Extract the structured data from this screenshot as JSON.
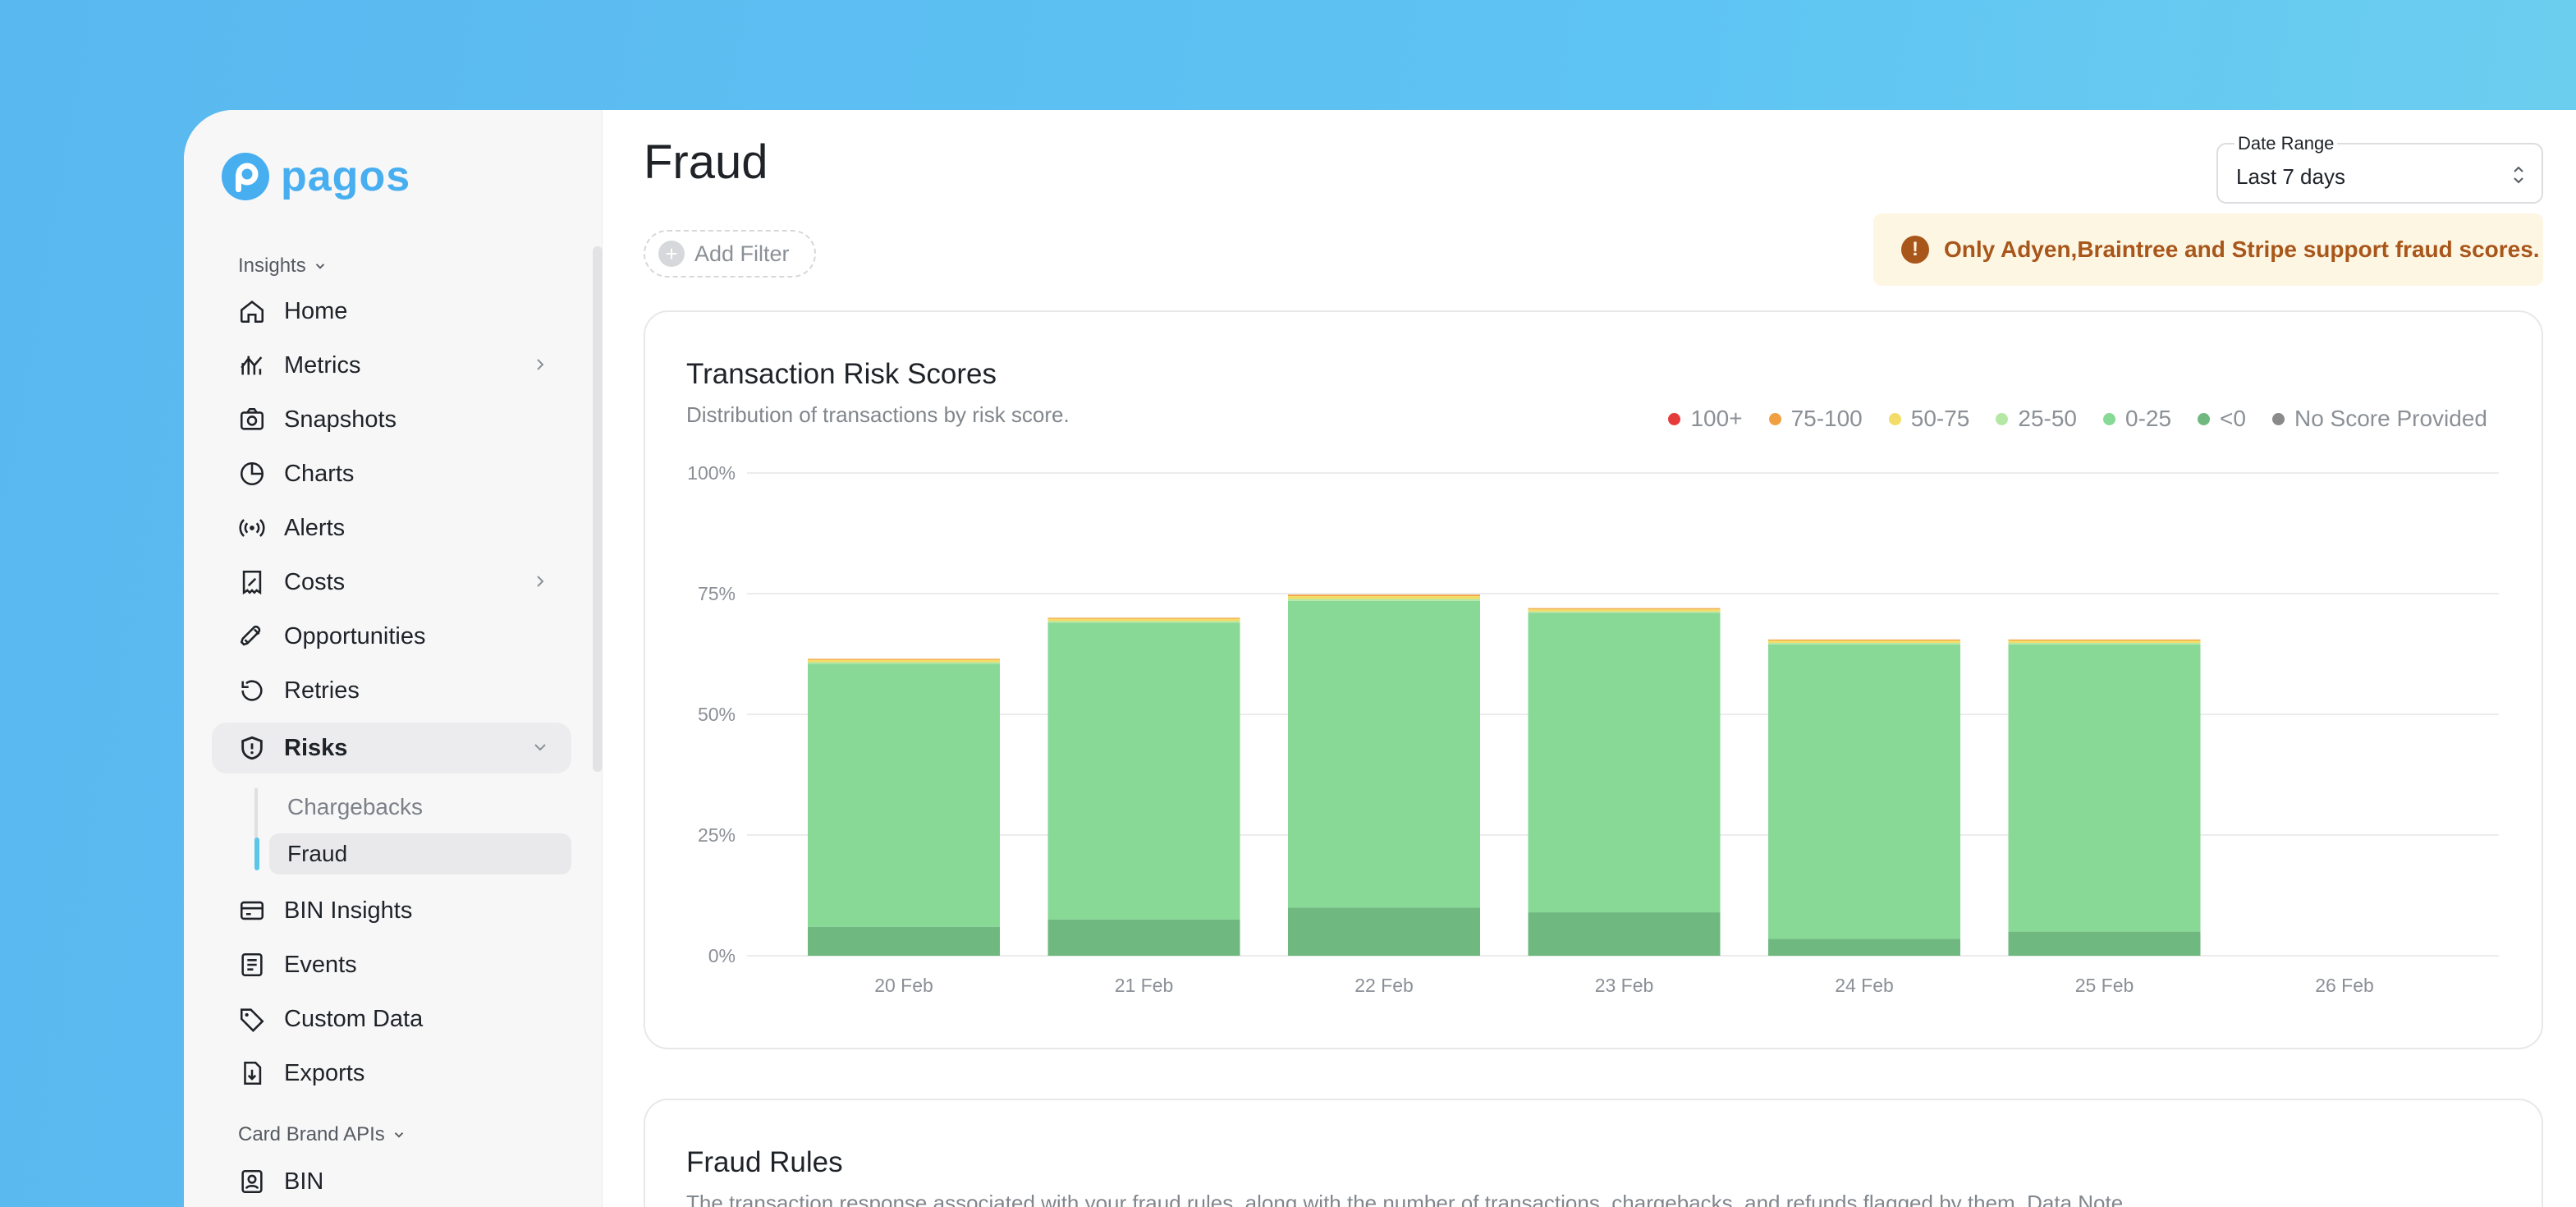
{
  "app": {
    "logo_text": "pagos",
    "brand_color": "#47aef0"
  },
  "sidebar": {
    "section1_label": "Insights",
    "items": [
      {
        "label": "Home",
        "icon": "home-icon"
      },
      {
        "label": "Metrics",
        "icon": "metrics-icon",
        "has_submenu": true
      },
      {
        "label": "Snapshots",
        "icon": "camera-icon"
      },
      {
        "label": "Charts",
        "icon": "pie-chart-icon"
      },
      {
        "label": "Alerts",
        "icon": "broadcast-icon"
      },
      {
        "label": "Costs",
        "icon": "receipt-icon",
        "has_submenu": true
      },
      {
        "label": "Opportunities",
        "icon": "rocket-icon"
      },
      {
        "label": "Retries",
        "icon": "refresh-icon"
      },
      {
        "label": "Risks",
        "icon": "shield-icon",
        "active": true,
        "expanded": true
      },
      {
        "label": "BIN Insights",
        "icon": "card-icon"
      },
      {
        "label": "Events",
        "icon": "list-icon"
      },
      {
        "label": "Custom Data",
        "icon": "tag-icon"
      },
      {
        "label": "Exports",
        "icon": "export-icon"
      }
    ],
    "risks_children": [
      {
        "label": "Chargebacks",
        "active": false
      },
      {
        "label": "Fraud",
        "active": true
      }
    ],
    "section2_label": "Card Brand APIs",
    "section2_items": [
      {
        "label": "BIN",
        "icon": "badge-icon"
      }
    ]
  },
  "header": {
    "title": "Fraud",
    "date_range_label": "Date Range",
    "date_range_value": "Last 7 days",
    "add_filter_label": "Add Filter",
    "notice_text": "Only Adyen,Braintree and Stripe support fraud scores."
  },
  "risk_card": {
    "title": "Transaction Risk Scores",
    "subtitle": "Distribution of transactions by risk score."
  },
  "rules_card": {
    "title": "Fraud Rules",
    "subtitle": "The transaction response associated with your fraud rules, along with the number of transactions, chargebacks, and refunds flagged by them. Data Note"
  },
  "chart_data": {
    "type": "bar",
    "stacked": true,
    "categories": [
      "20 Feb",
      "21 Feb",
      "22 Feb",
      "23 Feb",
      "24 Feb",
      "25 Feb",
      "26 Feb"
    ],
    "y_ticks": [
      "0%",
      "25%",
      "50%",
      "75%",
      "100%"
    ],
    "ylim": [
      0,
      100
    ],
    "legend_position": "top-right",
    "grid": true,
    "series": [
      {
        "name": "<0",
        "color": "#6fb980",
        "values": [
          6,
          7.5,
          10,
          9,
          3.5,
          5,
          0
        ]
      },
      {
        "name": "0-25",
        "color": "#88d896",
        "values": [
          54.5,
          61.5,
          63.5,
          62,
          61,
          59.5,
          0
        ]
      },
      {
        "name": "25-50",
        "color": "#b4e8a4",
        "values": [
          0.3,
          0.3,
          0.4,
          0.3,
          0.3,
          0.3,
          0
        ]
      },
      {
        "name": "50-75",
        "color": "#f3dc68",
        "values": [
          0.5,
          0.5,
          0.6,
          0.5,
          0.5,
          0.5,
          0
        ]
      },
      {
        "name": "75-100",
        "color": "#f0a040",
        "values": [
          0.2,
          0.2,
          0.3,
          0.2,
          0.2,
          0.2,
          0
        ]
      },
      {
        "name": "100+",
        "color": "#e53b3b",
        "values": [
          0,
          0,
          0,
          0,
          0,
          0,
          0
        ]
      },
      {
        "name": "No Score Provided",
        "color": "#8a8a8a",
        "values": [
          0,
          0,
          0,
          0,
          0,
          0,
          0
        ]
      }
    ],
    "legend_order": [
      "100+",
      "75-100",
      "50-75",
      "25-50",
      "0-25",
      "<0",
      "No Score Provided"
    ]
  }
}
